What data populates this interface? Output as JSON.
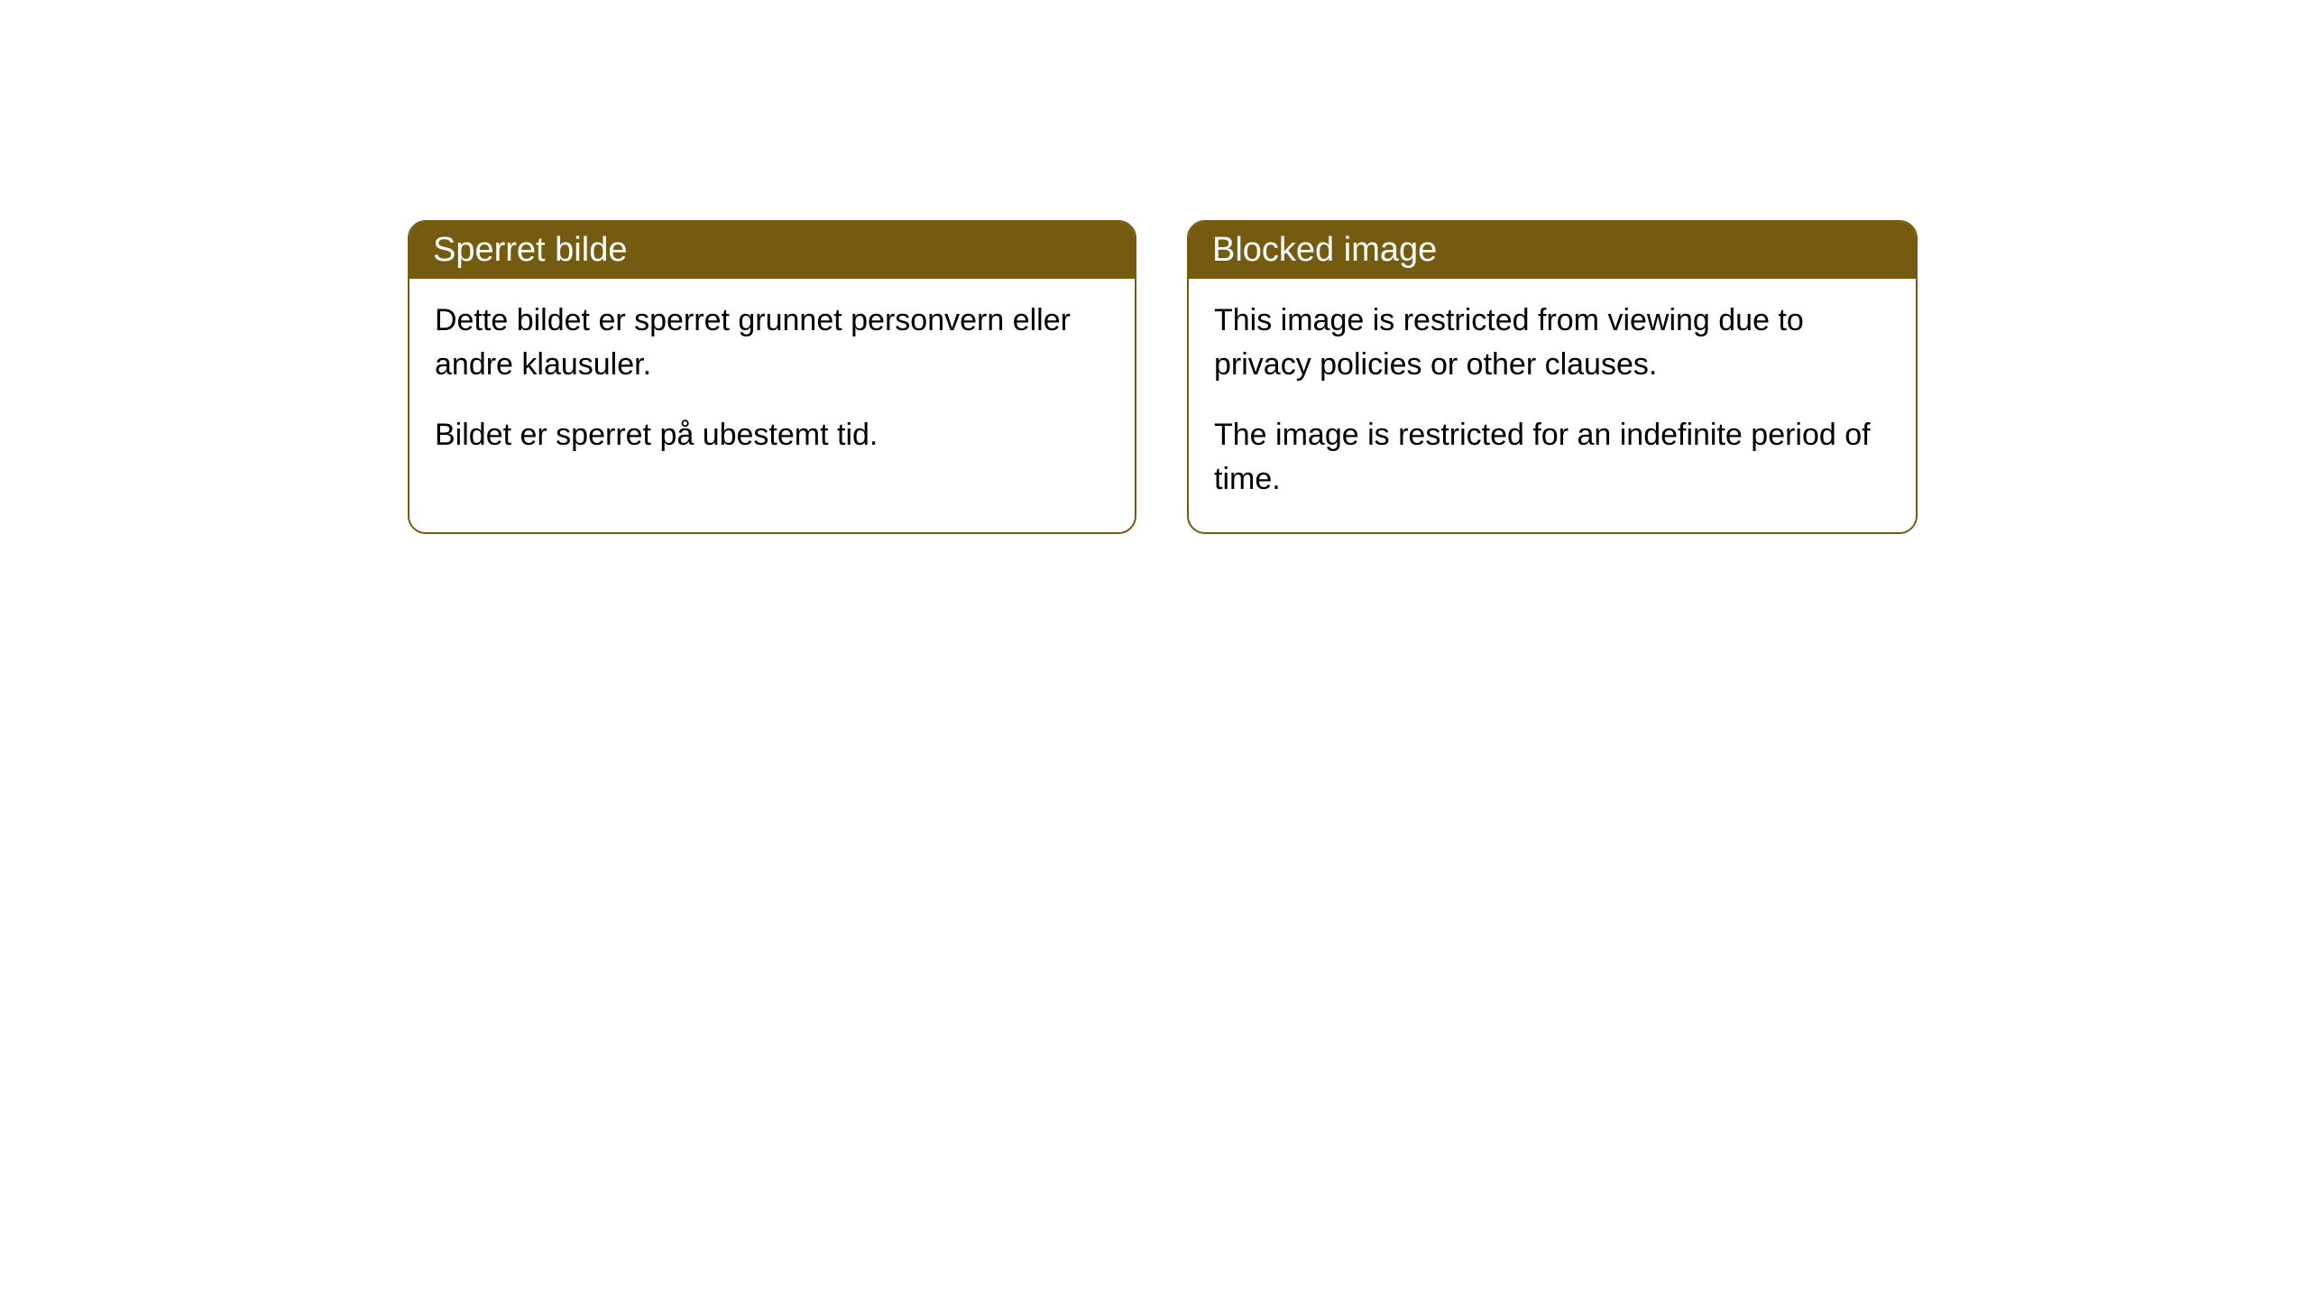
{
  "cards": {
    "norwegian": {
      "title": "Sperret bilde",
      "paragraph1": "Dette bildet er sperret grunnet personvern eller andre klausuler.",
      "paragraph2": "Bildet er sperret på ubestemt tid."
    },
    "english": {
      "title": "Blocked image",
      "paragraph1": "This image is restricted from viewing due to privacy policies or other clauses.",
      "paragraph2": "The image is restricted for an indefinite period of time."
    }
  },
  "styling": {
    "header_background": "#755b10",
    "header_text_color": "#ffffff",
    "border_color": "#755b10",
    "body_background": "#ffffff",
    "body_text_color": "#000000",
    "border_radius": 20,
    "header_fontsize": 38,
    "body_fontsize": 34
  }
}
